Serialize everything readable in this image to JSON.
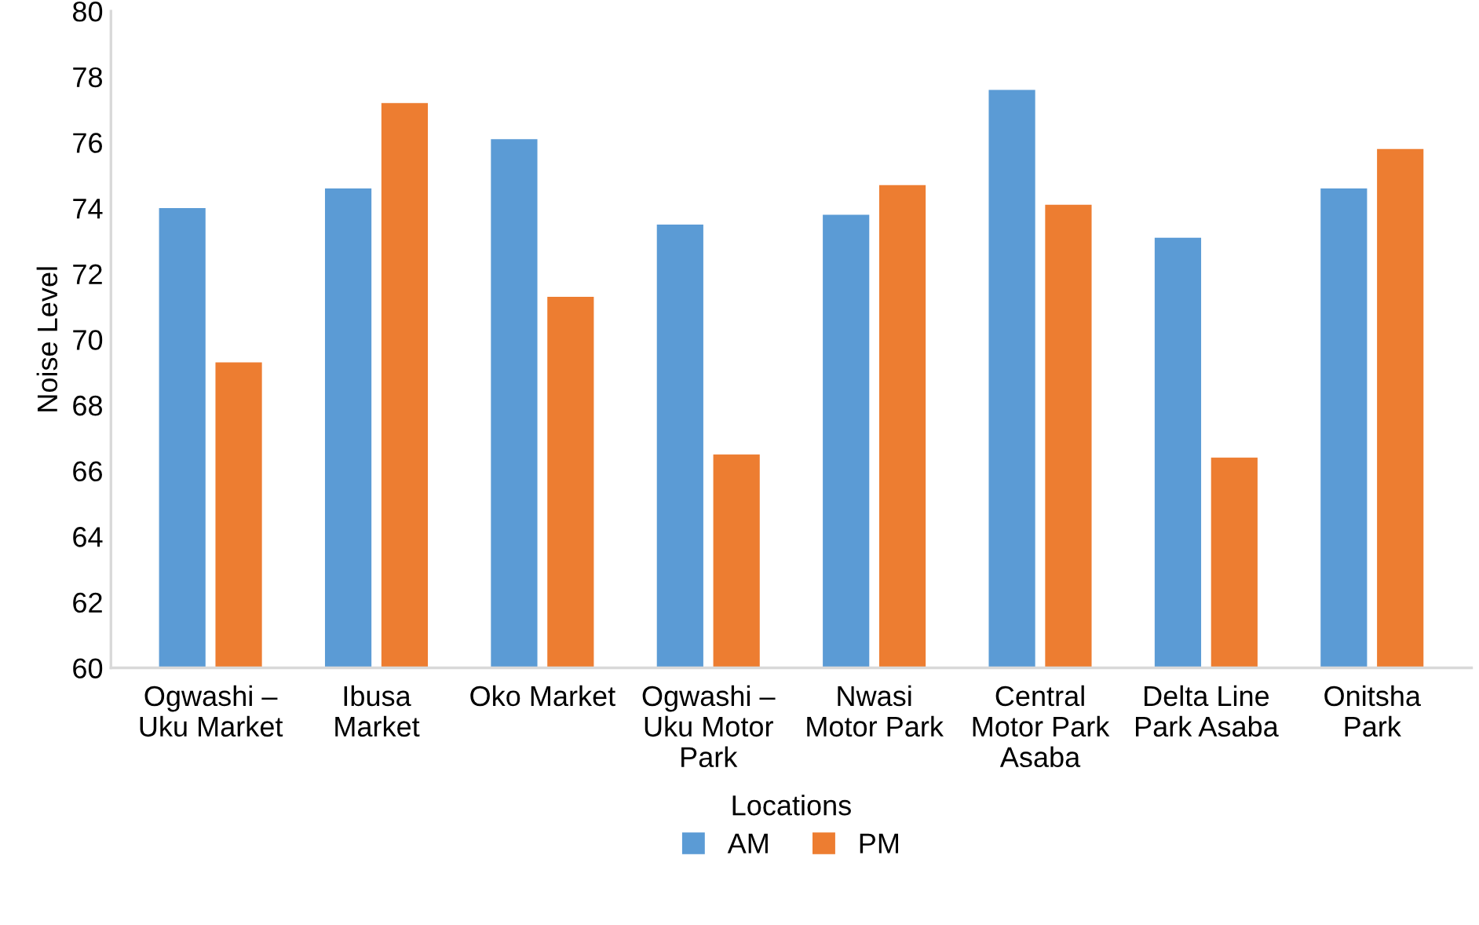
{
  "chart_data": {
    "type": "bar",
    "xlabel": "Locations",
    "ylabel": "Noise Level",
    "categories": [
      "Ogwashi –\nUku Market",
      "Ibusa\nMarket",
      "Oko Market",
      "Ogwashi –\nUku Motor\nPark",
      "Nwasi\nMotor Park",
      "Central\nMotor Park\nAsaba",
      "Delta Line\nPark Asaba",
      "Onitsha\nPark"
    ],
    "series": [
      {
        "name": "AM",
        "color": "#5b9bd5",
        "values": [
          74.0,
          74.6,
          76.1,
          73.5,
          73.8,
          77.6,
          73.1,
          74.6
        ]
      },
      {
        "name": "PM",
        "color": "#ed7d31",
        "values": [
          69.3,
          77.2,
          71.3,
          66.5,
          74.7,
          74.1,
          66.4,
          75.8
        ]
      }
    ],
    "ylim": [
      60,
      80
    ],
    "yticks": [
      60,
      62,
      64,
      66,
      68,
      70,
      72,
      74,
      76,
      78,
      80
    ],
    "grid": false,
    "legend": "bottom"
  }
}
